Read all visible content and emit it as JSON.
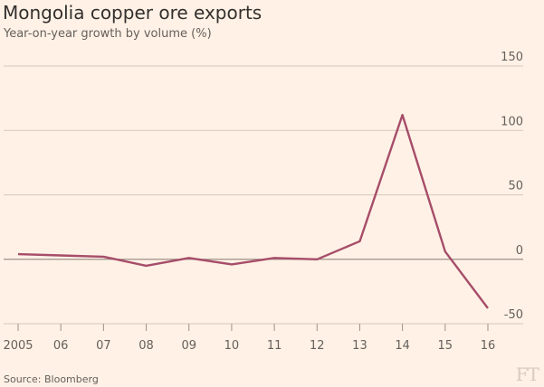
{
  "chart_data": {
    "type": "line",
    "title": "Mongolia copper ore exports",
    "subtitle": "Year-on-year growth by volume (%)",
    "source": "Source: Bloomberg",
    "logo": "FT",
    "x": [
      "2005",
      "06",
      "07",
      "08",
      "09",
      "10",
      "11",
      "12",
      "13",
      "14",
      "15",
      "16"
    ],
    "yticks": [
      150,
      100,
      50,
      0,
      -50
    ],
    "ylim": [
      -50,
      150
    ],
    "series": [
      {
        "values": [
          4,
          3,
          2,
          -5,
          1,
          -4,
          1,
          0,
          14,
          112,
          6,
          -38
        ],
        "color": "#a64d6a"
      }
    ],
    "grid": true
  }
}
